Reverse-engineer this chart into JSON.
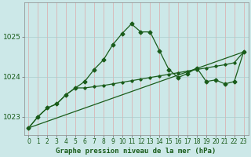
{
  "title": "Graphe pression niveau de la mer (hPa)",
  "bg_color": "#cce8e8",
  "plot_bg_color": "#cce8e8",
  "vgrid_color": "#ddaaaa",
  "hgrid_color": "#aacccc",
  "line_color": "#1a5c1a",
  "xlim": [
    -0.5,
    23.5
  ],
  "ylim": [
    1022.55,
    1025.85
  ],
  "yticks": [
    1023,
    1024,
    1025
  ],
  "xticks": [
    0,
    1,
    2,
    3,
    4,
    5,
    6,
    7,
    8,
    9,
    10,
    11,
    12,
    13,
    14,
    15,
    16,
    17,
    18,
    19,
    20,
    21,
    22,
    23
  ],
  "series1": [
    1022.72,
    1023.0,
    1023.22,
    1023.32,
    1023.55,
    1023.72,
    1023.88,
    1024.18,
    1024.42,
    1024.8,
    1025.08,
    1025.32,
    1025.12,
    1025.12,
    1024.65,
    1024.18,
    1023.98,
    1024.08,
    1024.22,
    1023.88,
    1023.92,
    1023.82,
    1023.88,
    1024.62
  ],
  "series2": [
    1022.72,
    1023.0,
    1023.22,
    1023.32,
    1023.55,
    1023.72,
    1023.72,
    1023.75,
    1023.78,
    1023.82,
    1023.86,
    1023.9,
    1023.94,
    1023.98,
    1024.02,
    1024.06,
    1024.1,
    1024.14,
    1024.18,
    1024.22,
    1024.26,
    1024.3,
    1024.35,
    1024.62
  ],
  "series3_x": [
    0,
    23
  ],
  "series3_y": [
    1022.72,
    1024.62
  ],
  "tick_fontsize": 5.5,
  "label_fontsize": 6.5,
  "marker_size": 2.5,
  "line_width": 0.9
}
